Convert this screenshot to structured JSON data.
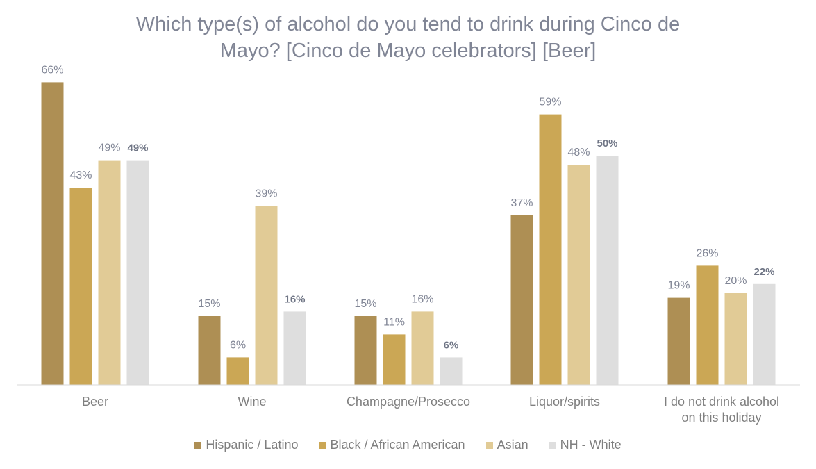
{
  "chart_data": {
    "type": "bar",
    "title": "Which type(s) of alcohol do you tend to drink during Cinco de Mayo? [Cinco de Mayo celebrators] [Beer]",
    "title_lines": [
      "Which type(s) of alcohol do you tend to drink during Cinco de",
      "Mayo? [Cinco de Mayo celebrators] [Beer]"
    ],
    "categories": [
      "Beer",
      "Wine",
      "Champagne/Prosecco",
      "Liquor/spirits",
      "I do not drink alcohol on this holiday"
    ],
    "category_lines": [
      [
        "Beer"
      ],
      [
        "Wine"
      ],
      [
        "Champagne/Prosecco"
      ],
      [
        "Liquor/spirits"
      ],
      [
        "I do not drink alcohol",
        "on this holiday"
      ]
    ],
    "series": [
      {
        "name": "Hispanic / Latino",
        "color": "#ae8f54",
        "values": [
          66,
          15,
          15,
          37,
          19
        ]
      },
      {
        "name": "Black / African American",
        "color": "#cba755",
        "values": [
          43,
          6,
          11,
          59,
          26
        ]
      },
      {
        "name": "Asian",
        "color": "#e1cb96",
        "values": [
          49,
          39,
          16,
          48,
          20
        ]
      },
      {
        "name": "NH - White",
        "color": "#dedede",
        "values": [
          49,
          16,
          6,
          50,
          22
        ],
        "label_bold": true
      }
    ],
    "value_suffix": "%",
    "ylim": [
      0,
      70
    ],
    "grid": false,
    "legend_position": "bottom"
  }
}
